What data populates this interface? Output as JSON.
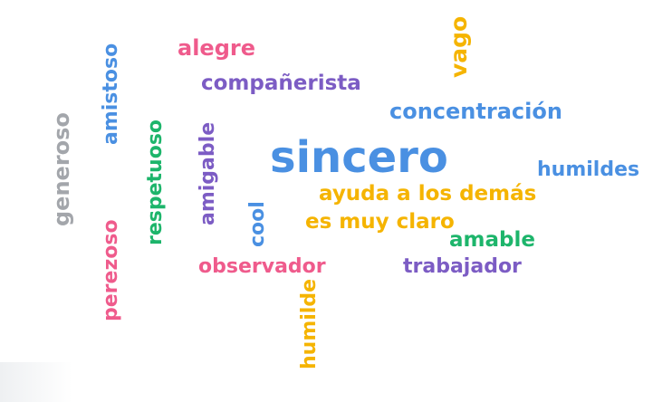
{
  "colors": {
    "pink": "#ef5b8c",
    "purple": "#7c5cc4",
    "blue": "#4a90e2",
    "yellow": "#f5b400",
    "green": "#1db56b",
    "gray": "#a3a6ab"
  },
  "words": {
    "sincero": "sincero",
    "alegre": "alegre",
    "companerista": "compañerista",
    "concentracion": "concentración",
    "humildes": "humildes",
    "ayuda_a_los_demas": "ayuda a los demás",
    "es_muy_claro": "es muy claro",
    "amable": "amable",
    "observador": "observador",
    "trabajador": "trabajador",
    "vago": "vago",
    "amistoso": "amistoso",
    "generoso": "generoso",
    "respetuoso": "respetuoso",
    "amigable": "amigable",
    "cool": "cool",
    "perezoso": "perezoso",
    "humilde": "humilde"
  }
}
